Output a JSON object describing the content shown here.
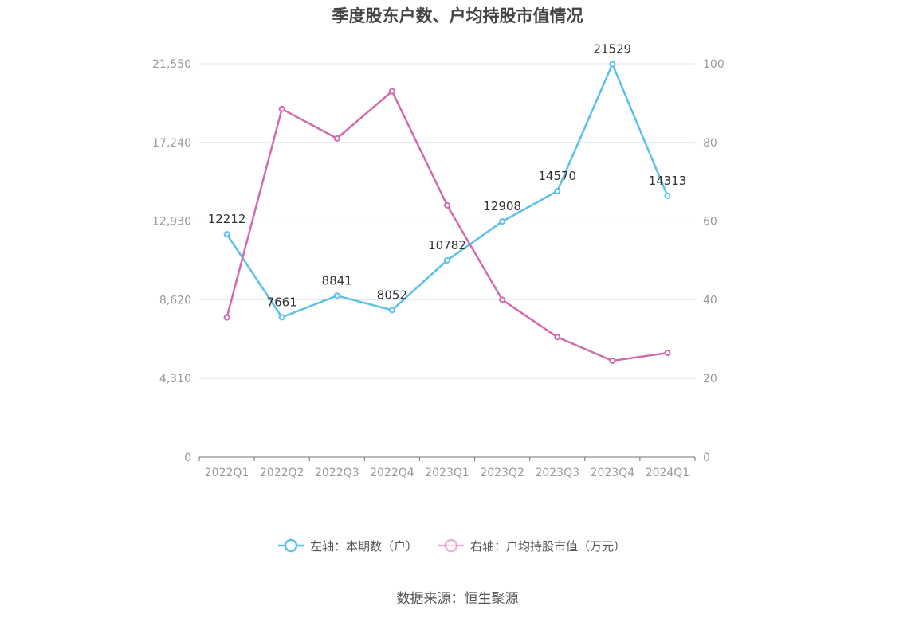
{
  "title": "季度股东户数、户均持股市值情况",
  "source": "数据来源：恒生聚源",
  "colors": {
    "left_series": "#5bc0eb",
    "right_series": "#d16bae",
    "grid": "#e0e6f1",
    "axis": "#6e7079"
  },
  "chart_data": {
    "type": "line",
    "categories": [
      "2022Q1",
      "2022Q2",
      "2022Q3",
      "2022Q4",
      "2023Q1",
      "2023Q2",
      "2023Q3",
      "2023Q4",
      "2024Q1"
    ],
    "left_axis": {
      "min": 0,
      "max": 21550,
      "ticks": [
        "0",
        "4,310",
        "8,620",
        "12,930",
        "17,240",
        "21,550"
      ]
    },
    "right_axis": {
      "min": 0,
      "max": 100,
      "ticks": [
        "0",
        "20",
        "40",
        "60",
        "80",
        "100"
      ]
    },
    "grid": true,
    "legend_position": "bottom",
    "series": [
      {
        "name": "左轴：本期数（户）",
        "axis": "left",
        "values": [
          12212,
          7661,
          8841,
          8052,
          10782,
          12908,
          14570,
          21529,
          14313
        ],
        "labels": [
          "12212",
          "7661",
          "8841",
          "8052",
          "10782",
          "12908",
          "14570",
          "21529",
          "14313"
        ]
      },
      {
        "name": "右轴：户均持股市值（万元）",
        "axis": "right",
        "values": [
          35.5,
          88.5,
          81,
          93,
          64,
          40,
          30.5,
          24.5,
          26.5
        ]
      }
    ]
  }
}
